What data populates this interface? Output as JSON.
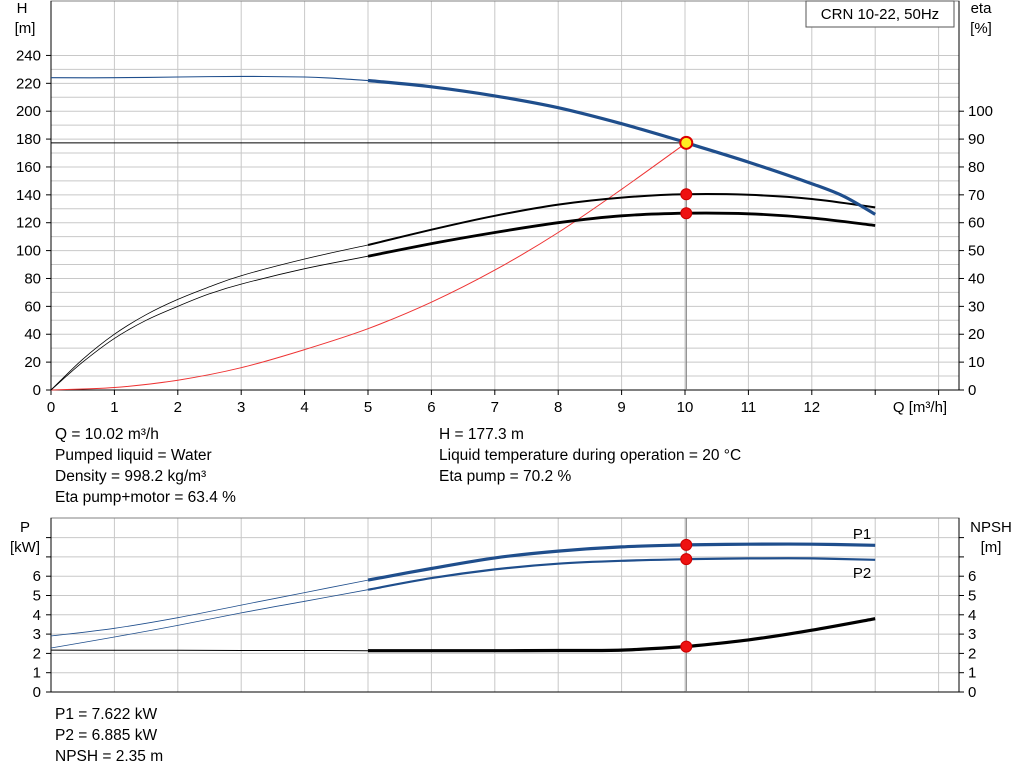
{
  "chart_data": [
    {
      "type": "line",
      "title": "CRN 10-22, 50Hz",
      "xlabel": "Q [m³/h]",
      "ylabel_left": [
        "H",
        "[m]"
      ],
      "ylabel_right": [
        "eta",
        "[%]"
      ],
      "xlim": [
        0,
        14
      ],
      "ylim_left": [
        0,
        250
      ],
      "ylim_right": [
        0,
        125
      ],
      "x_ticks": [
        "0",
        "1",
        "2",
        "3",
        "4",
        "5",
        "6",
        "7",
        "8",
        "9",
        "10",
        "11",
        "12"
      ],
      "y_ticks_left": [
        "0",
        "20",
        "40",
        "60",
        "80",
        "100",
        "120",
        "140",
        "160",
        "180",
        "200",
        "220",
        "240"
      ],
      "y_ticks_right": [
        "0",
        "10",
        "20",
        "30",
        "40",
        "50",
        "60",
        "70",
        "80",
        "90",
        "100"
      ],
      "grid": true,
      "series": [
        {
          "axis": "left",
          "color": "#1f4e8c",
          "x": [
            0,
            1,
            2,
            3,
            4,
            4.5,
            5,
            6,
            7,
            8,
            9,
            10,
            10.02,
            11,
            12,
            12.5,
            13
          ],
          "y": [
            224,
            224,
            224.5,
            225,
            224.5,
            223.5,
            222,
            217.5,
            211,
            202.5,
            191,
            177.8,
            177.3,
            163.5,
            148,
            139,
            126
          ]
        },
        {
          "axis": "right",
          "color": "#000000",
          "x": [
            0,
            0.5,
            1,
            1.5,
            2,
            2.5,
            3,
            4,
            5,
            6,
            7,
            8,
            9,
            10,
            11,
            12,
            13
          ],
          "y": [
            0,
            10,
            18.5,
            25,
            30,
            34.5,
            38,
            43.5,
            48,
            52.5,
            56.5,
            60,
            62.5,
            63.4,
            63.2,
            61.7,
            59
          ]
        },
        {
          "axis": "right",
          "color": "#000000",
          "x": [
            0,
            0.5,
            1,
            1.5,
            2,
            2.5,
            3,
            4,
            5,
            6,
            7,
            8,
            9,
            10,
            11,
            12,
            13
          ],
          "y": [
            0,
            11,
            20,
            27,
            32.5,
            37,
            41,
            47,
            52,
            57.5,
            62.5,
            66.5,
            69,
            70.2,
            70,
            68.5,
            65.5
          ]
        },
        {
          "axis": "left",
          "color": "#ee3333",
          "x": [
            0,
            1,
            2,
            3,
            4,
            5,
            6,
            7,
            8,
            9,
            10.02
          ],
          "y": [
            0,
            1.8,
            7,
            16,
            29,
            44,
            63,
            86,
            113,
            144,
            177.3
          ]
        }
      ],
      "operating_point": {
        "x": 10.02,
        "h": 177.3,
        "eta_pump": 70.2,
        "eta_total": 63.4
      }
    },
    {
      "type": "line",
      "ylabel_left": [
        "P",
        "[kW]"
      ],
      "ylabel_right": [
        "NPSH",
        "[m]"
      ],
      "xlim": [
        0,
        14
      ],
      "ylim": [
        0,
        8.8
      ],
      "y_ticks": [
        "0",
        "1",
        "2",
        "3",
        "4",
        "5",
        "6"
      ],
      "grid": true,
      "series": [
        {
          "name": "P1",
          "color": "#1f4e8c",
          "x": [
            0,
            1,
            2,
            3,
            4,
            5,
            6,
            7,
            8,
            9,
            10,
            10.02,
            11,
            12,
            13
          ],
          "y": [
            2.9,
            3.3,
            3.85,
            4.5,
            5.15,
            5.8,
            6.4,
            6.95,
            7.3,
            7.52,
            7.62,
            7.622,
            7.66,
            7.66,
            7.6
          ]
        },
        {
          "name": "P2",
          "color": "#1f4e8c",
          "x": [
            0,
            1,
            2,
            3,
            4,
            5,
            6,
            7,
            8,
            9,
            10,
            10.02,
            11,
            12,
            13
          ],
          "y": [
            2.28,
            2.85,
            3.45,
            4.1,
            4.7,
            5.3,
            5.9,
            6.35,
            6.65,
            6.8,
            6.88,
            6.885,
            6.92,
            6.92,
            6.85
          ]
        },
        {
          "name": "NPSH",
          "color": "#000000",
          "x": [
            0,
            1,
            2,
            3,
            4,
            5,
            6,
            7,
            8,
            9,
            10,
            10.02,
            11,
            12,
            13
          ],
          "y": [
            2.17,
            2.16,
            2.16,
            2.15,
            2.15,
            2.14,
            2.14,
            2.14,
            2.15,
            2.17,
            2.35,
            2.35,
            2.7,
            3.2,
            3.8
          ]
        }
      ],
      "operating_point": {
        "x": 10.02,
        "p1": 7.622,
        "p2": 6.885,
        "npsh": 2.35
      }
    }
  ],
  "info_top_left": [
    "Q = 10.02 m³/h",
    "Pumped liquid = Water",
    "Density = 998.2 kg/m³",
    "Eta pump+motor = 63.4 %"
  ],
  "info_top_right": [
    "H = 177.3 m",
    "Liquid temperature during operation = 20 °C",
    "Eta pump = 70.2 %"
  ],
  "info_bottom": [
    "P1 = 7.622 kW",
    "P2 = 6.885 kW",
    "NPSH = 2.35 m"
  ]
}
